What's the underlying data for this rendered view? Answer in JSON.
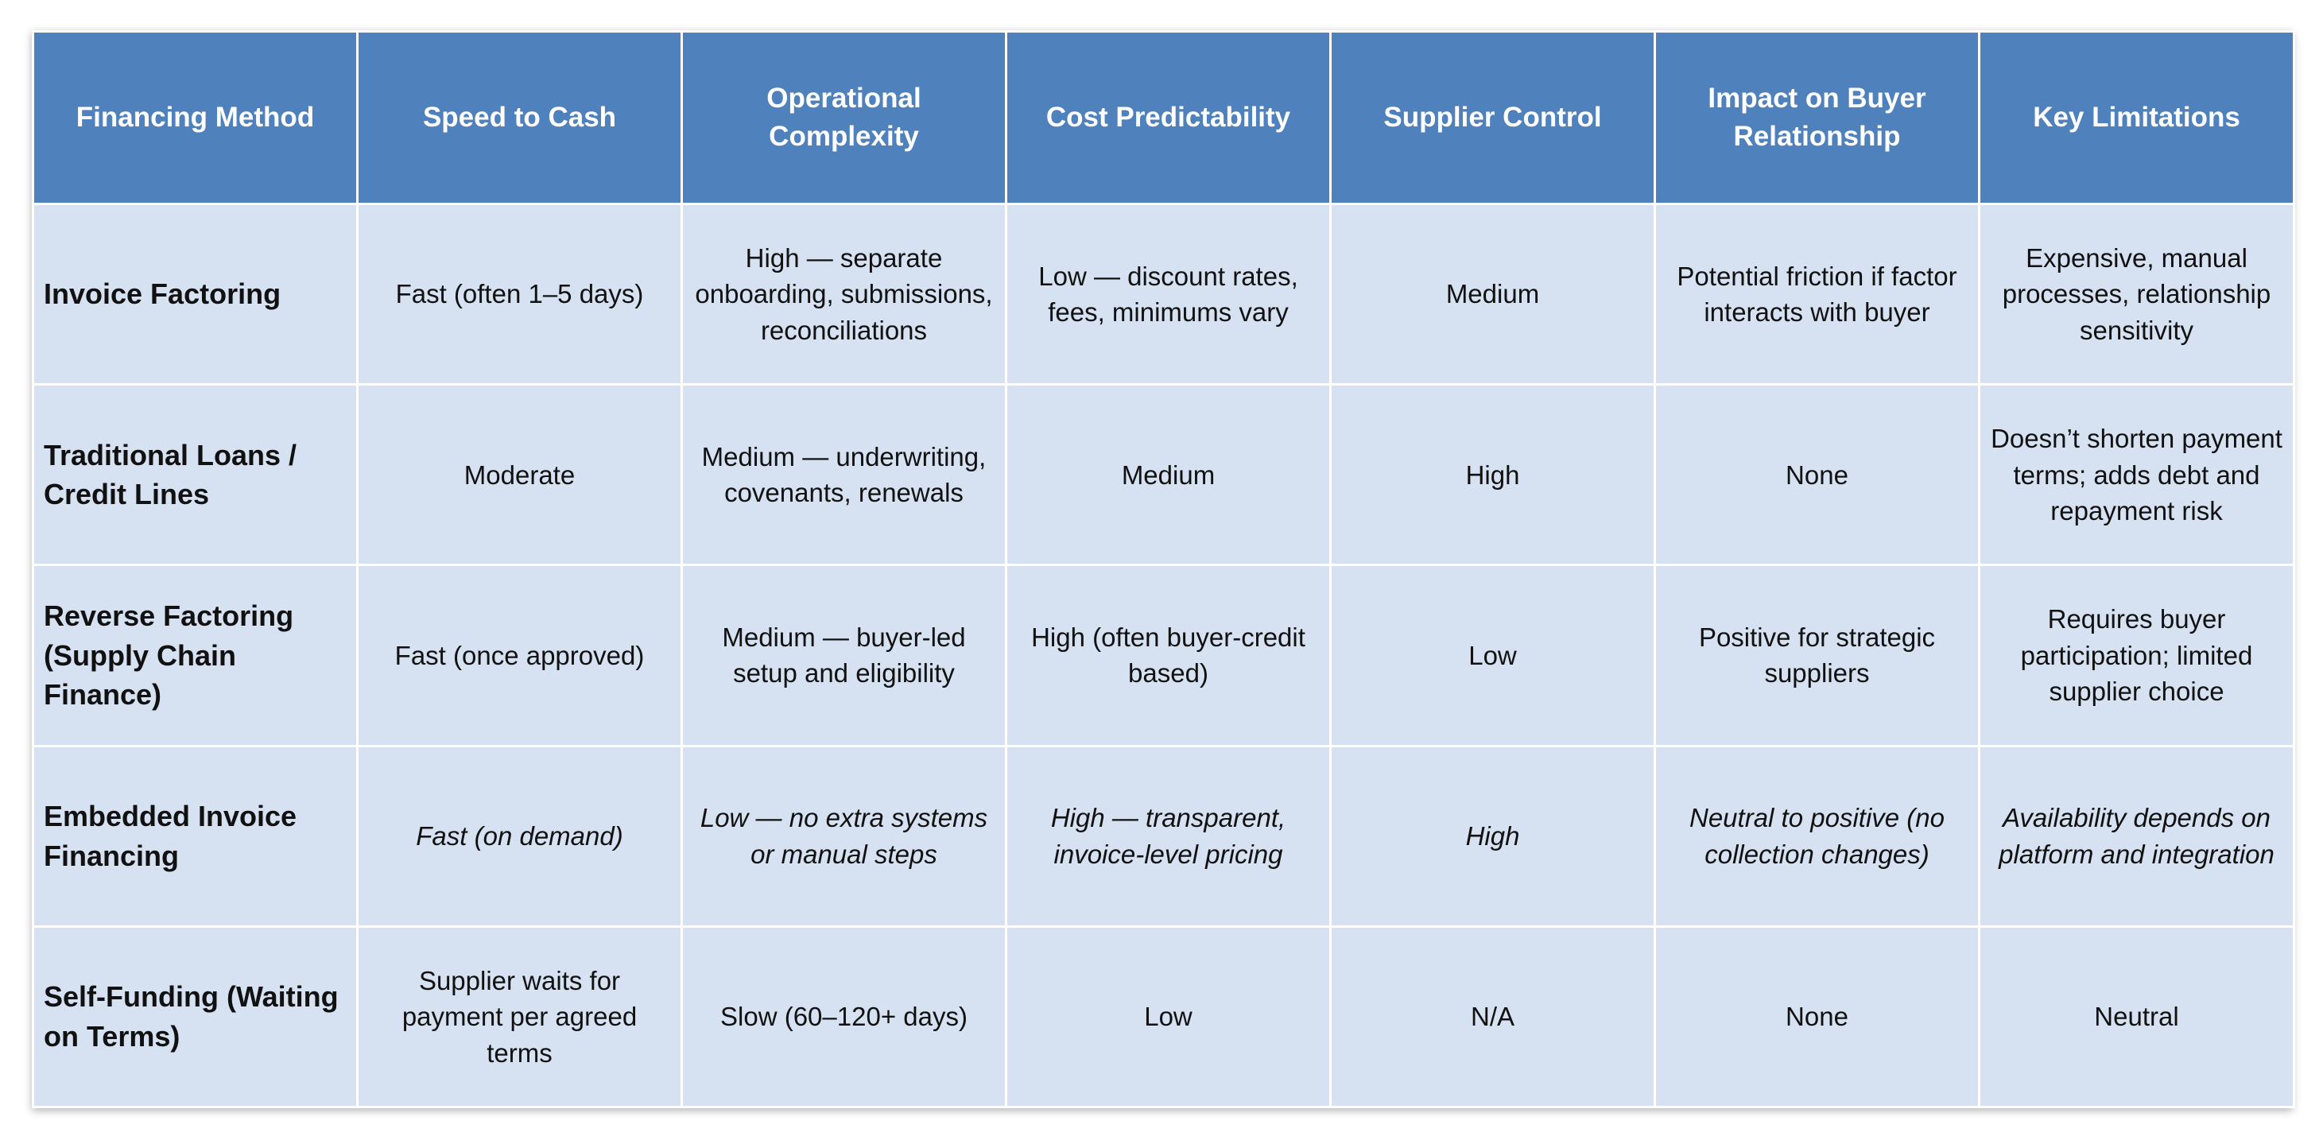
{
  "table": {
    "headers": [
      "Financing Method",
      "Speed to Cash",
      "Operational Complexity",
      "Cost Predictability",
      "Supplier Control",
      "Impact on Buyer Relationship",
      "Key Limitations"
    ],
    "rows": [
      {
        "style": "normal",
        "cells": [
          "Invoice Factoring",
          "Fast (often 1–5 days)",
          "High — separate onboarding, submissions, reconciliations",
          "Low — discount rates, fees, minimums vary",
          "Medium",
          "Potential friction if factor interacts with buyer",
          "Expensive, manual processes, relationship sensitivity"
        ]
      },
      {
        "style": "normal",
        "cells": [
          "Traditional Loans / Credit Lines",
          "Moderate",
          "Medium — underwriting, covenants, renewals",
          "Medium",
          "High",
          "None",
          "Doesn’t shorten payment terms; adds debt and repayment risk"
        ]
      },
      {
        "style": "normal",
        "cells": [
          "Reverse Factoring (Supply Chain Finance)",
          "Fast (once approved)",
          "Medium — buyer-led setup and eligibility",
          "High (often buyer-credit based)",
          "Low",
          "Positive for strategic suppliers",
          "Requires buyer participation; limited supplier choice"
        ]
      },
      {
        "style": "italic",
        "cells": [
          "Embedded Invoice Financing",
          "Fast (on demand)",
          "Low — no extra systems or manual steps",
          "High — transparent, invoice-level pricing",
          "High",
          "Neutral to positive (no collection changes)",
          "Availability depends on platform and integration"
        ]
      },
      {
        "style": "normal",
        "cells": [
          "Self-Funding (Waiting on Terms)",
          "Supplier waits for payment per agreed terms",
          "Slow (60–120+ days)",
          "Low",
          "N/A",
          "None",
          "Neutral"
        ]
      }
    ]
  },
  "colors": {
    "header_bg": "#4f81bd",
    "header_text": "#ffffff",
    "cell_bg": "#d6e2f1",
    "border": "#ffffff"
  }
}
